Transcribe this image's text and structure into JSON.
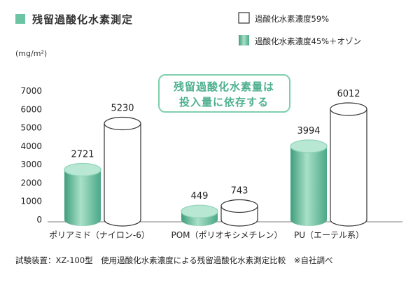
{
  "title": "残留過酸化水素測定",
  "legend": [
    {
      "label": "過酸化水素濃度59%",
      "style": "white"
    },
    {
      "label": "過酸化水素濃度45%＋オゾン",
      "style": "green"
    }
  ],
  "unit": "(mg/m²)",
  "annotation": [
    "残留過酸化水素量は",
    "投入量に依存する"
  ],
  "footnote": "試験装置：XZ-100型　使用過酸化水素濃度による残留過酸化水素測定比較　※自社調べ",
  "colors": {
    "green": "#6cc4a4",
    "green_dark": "#3f9e7c",
    "green_light": "#b8e8d4",
    "outline": "#333333",
    "note_border": "#7fcfae",
    "note_text": "#4fb08f"
  },
  "chart_data": {
    "type": "bar",
    "title": "残留過酸化水素測定",
    "ylabel": "(mg/m²)",
    "ylim": [
      0,
      7000
    ],
    "yticks": [
      0,
      1000,
      2000,
      3000,
      4000,
      5000,
      6000,
      7000
    ],
    "categories": [
      "ポリアミド（ナイロン-6）",
      "POM（ポリオキシメチレン）",
      "PU（エーテル系）"
    ],
    "series": [
      {
        "name": "過酸化水素濃度45%＋オゾン",
        "style": "green",
        "values": [
          2721,
          449,
          3994
        ]
      },
      {
        "name": "過酸化水素濃度59%",
        "style": "white",
        "values": [
          5230,
          743,
          6012
        ]
      }
    ],
    "legend_position": "top-right",
    "grid": false
  }
}
